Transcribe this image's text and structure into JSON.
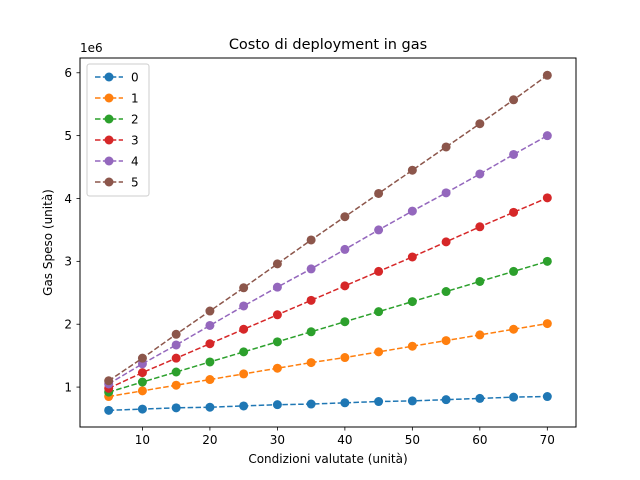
{
  "chart_data": {
    "type": "line",
    "title": "Costo di deployment in gas",
    "xlabel": "Condizioni valutate (unità)",
    "ylabel": "Gas Speso (unità)",
    "y_multiplier_label": "1e6",
    "xlim": [
      0.75,
      74.25
    ],
    "ylim": [
      0.365,
      6.235
    ],
    "xticks": [
      10,
      20,
      30,
      40,
      50,
      60,
      70
    ],
    "yticks": [
      1,
      2,
      3,
      4,
      5,
      6
    ],
    "grid": false,
    "legend_position": "upper left",
    "line_style": "dashed",
    "marker": "circle",
    "x": [
      5,
      10,
      15,
      20,
      25,
      30,
      35,
      40,
      45,
      50,
      55,
      60,
      65,
      70
    ],
    "series": [
      {
        "name": "0",
        "color": "#1f77b4",
        "values": [
          0.63,
          0.65,
          0.67,
          0.68,
          0.7,
          0.72,
          0.73,
          0.75,
          0.77,
          0.78,
          0.8,
          0.82,
          0.84,
          0.85
        ]
      },
      {
        "name": "1",
        "color": "#ff7f0e",
        "values": [
          0.85,
          0.94,
          1.03,
          1.12,
          1.21,
          1.3,
          1.39,
          1.47,
          1.56,
          1.65,
          1.74,
          1.83,
          1.92,
          2.01
        ]
      },
      {
        "name": "2",
        "color": "#2ca02c",
        "values": [
          0.92,
          1.08,
          1.24,
          1.4,
          1.56,
          1.72,
          1.88,
          2.04,
          2.2,
          2.36,
          2.52,
          2.68,
          2.84,
          3.0
        ]
      },
      {
        "name": "3",
        "color": "#d62728",
        "values": [
          0.98,
          1.23,
          1.46,
          1.69,
          1.92,
          2.15,
          2.38,
          2.61,
          2.84,
          3.07,
          3.31,
          3.55,
          3.78,
          4.01
        ]
      },
      {
        "name": "4",
        "color": "#9467bd",
        "values": [
          1.05,
          1.37,
          1.67,
          1.98,
          2.29,
          2.59,
          2.88,
          3.19,
          3.5,
          3.8,
          4.09,
          4.39,
          4.7,
          5.0
        ]
      },
      {
        "name": "5",
        "color": "#8c564b",
        "values": [
          1.1,
          1.46,
          1.84,
          2.21,
          2.58,
          2.96,
          3.34,
          3.71,
          4.08,
          4.45,
          4.82,
          5.19,
          5.57,
          5.96
        ]
      }
    ]
  }
}
